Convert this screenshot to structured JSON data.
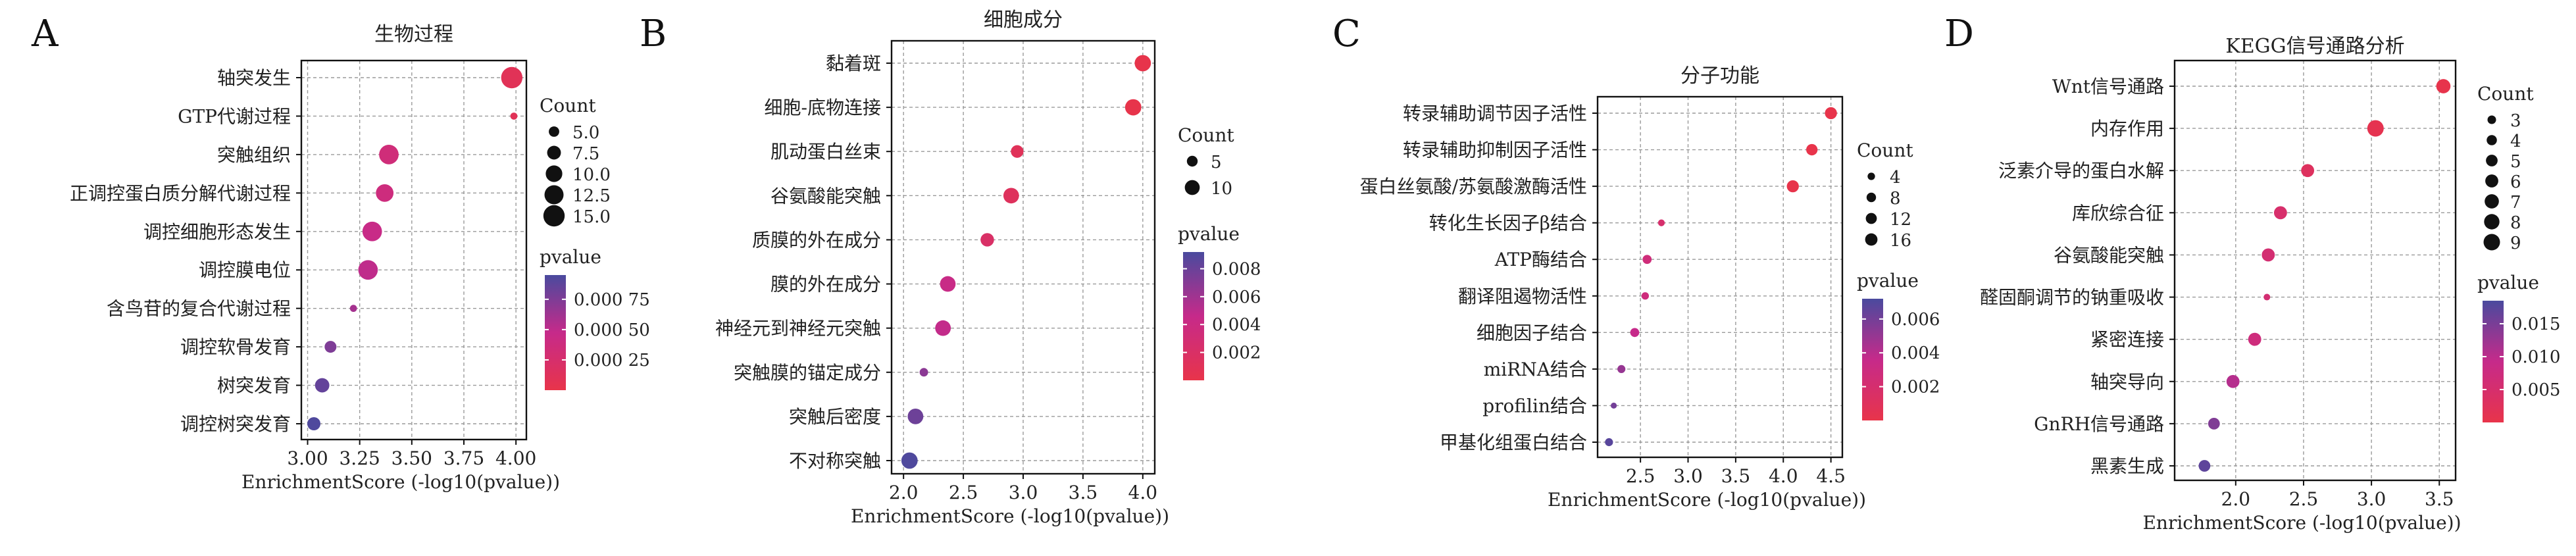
{
  "figure": {
    "panels": [
      {
        "letter": "A",
        "title": "生物过程"
      },
      {
        "letter": "B",
        "title": "细胞成分"
      },
      {
        "letter": "C",
        "title": "分子功能"
      },
      {
        "letter": "D",
        "title": "KEGG信号通路分析"
      }
    ]
  },
  "chart_data": [
    {
      "panel": "A",
      "type": "scatter",
      "title": "生物过程",
      "xlabel": "EnrichmentScore (-log10(pvalue))",
      "ylabel": "",
      "xlim": [
        2.97,
        4.05
      ],
      "xticks": [
        "3.00",
        "3.25",
        "3.50",
        "3.75",
        "4.00"
      ],
      "xtick_values": [
        3.0,
        3.25,
        3.5,
        3.75,
        4.0
      ],
      "grid": true,
      "color_scale": {
        "low": "#e8344a",
        "mid": "#c62a8a",
        "high": "#4a4a9e"
      },
      "size_legend": {
        "title": "Count",
        "labels": [
          "5.0",
          "7.5",
          "10.0",
          "12.5",
          "15.0"
        ],
        "values": [
          5,
          7.5,
          10,
          12.5,
          15
        ]
      },
      "color_legend": {
        "title": "pvalue",
        "labels": [
          "0.000 75",
          "0.000 50",
          "0.000 25"
        ],
        "values": [
          0.00075,
          0.0005,
          0.00025
        ],
        "range": [
          0.0,
          0.00095
        ]
      },
      "categories": [
        "轴突发生",
        "GTP代谢过程",
        "突触组织",
        "正调控蛋白质分解代谢过程",
        "调控细胞形态发生",
        "调控膜电位",
        "含鸟苷的复合代谢过程",
        "调控软骨发育",
        "树突发育",
        "调控树突发育"
      ],
      "x": [
        3.98,
        3.99,
        3.39,
        3.37,
        3.31,
        3.29,
        3.22,
        3.11,
        3.07,
        3.03
      ],
      "count": [
        15,
        3,
        13,
        11,
        13,
        13,
        3,
        6,
        8,
        7
      ],
      "pvalue": [
        0.0001,
        0.0001,
        0.00035,
        0.00038,
        0.00045,
        0.0005,
        0.0006,
        0.00075,
        0.00085,
        0.00093
      ]
    },
    {
      "panel": "B",
      "type": "scatter",
      "title": "细胞成分",
      "xlabel": "EnrichmentScore (-log10(pvalue))",
      "ylabel": "",
      "xlim": [
        1.9,
        4.1
      ],
      "xticks": [
        "2.0",
        "2.5",
        "3.0",
        "3.5",
        "4.0"
      ],
      "xtick_values": [
        2.0,
        2.5,
        3.0,
        3.5,
        4.0
      ],
      "grid": true,
      "color_scale": {
        "low": "#e8344a",
        "mid": "#c62a8a",
        "high": "#4a4a9e"
      },
      "size_legend": {
        "title": "Count",
        "labels": [
          "5",
          "10"
        ],
        "values": [
          5,
          10
        ]
      },
      "color_legend": {
        "title": "pvalue",
        "labels": [
          "0.008",
          "0.006",
          "0.004",
          "0.002"
        ],
        "values": [
          0.008,
          0.006,
          0.004,
          0.002
        ],
        "range": [
          0.0,
          0.0092
        ]
      },
      "categories": [
        "黏着斑",
        "细胞-底物连接",
        "肌动蛋白丝束",
        "谷氨酸能突触",
        "质膜的外在成分",
        "膜的外在成分",
        "神经元到神经元突触",
        "突触膜的锚定成分",
        "突触后密度",
        "不对称突触"
      ],
      "x": [
        4.0,
        3.92,
        2.95,
        2.9,
        2.7,
        2.37,
        2.33,
        2.17,
        2.1,
        2.05
      ],
      "count": [
        12,
        12,
        7,
        11,
        8,
        11,
        11,
        3,
        11,
        12
      ],
      "pvalue": [
        0.0001,
        0.0001,
        0.0011,
        0.0013,
        0.002,
        0.0043,
        0.0047,
        0.0068,
        0.0079,
        0.009
      ]
    },
    {
      "panel": "C",
      "type": "scatter",
      "title": "分子功能",
      "xlabel": "EnrichmentScore (-log10(pvalue))",
      "ylabel": "",
      "xlim": [
        2.05,
        4.62
      ],
      "xticks": [
        "2.5",
        "3.0",
        "3.5",
        "4.0",
        "4.5"
      ],
      "xtick_values": [
        2.5,
        3.0,
        3.5,
        4.0,
        4.5
      ],
      "grid": true,
      "color_scale": {
        "low": "#e8344a",
        "mid": "#c62a8a",
        "high": "#4a4a9e"
      },
      "size_legend": {
        "title": "Count",
        "labels": [
          "4",
          "8",
          "12",
          "16"
        ],
        "values": [
          4,
          8,
          12,
          16
        ]
      },
      "color_legend": {
        "title": "pvalue",
        "labels": [
          "0.006",
          "0.004",
          "0.002"
        ],
        "values": [
          0.006,
          0.004,
          0.002
        ],
        "range": [
          0.0,
          0.0072
        ]
      },
      "categories": [
        "转录辅助调节因子活性",
        "转录辅助抑制因子活性",
        "蛋白丝氨酸/苏氨酸激酶活性",
        "转化生长因子β结合",
        "ATP酶结合",
        "翻译阻遏物活性",
        "细胞因子结合",
        "miRNA结合",
        "profilin结合",
        "甲基化组蛋白结合"
      ],
      "x": [
        4.5,
        4.3,
        4.1,
        2.72,
        2.57,
        2.55,
        2.44,
        2.3,
        2.22,
        2.17
      ],
      "count": [
        15,
        13,
        15,
        3,
        7,
        4,
        7,
        5,
        2,
        5
      ],
      "pvalue": [
        3e-05,
        5e-05,
        8e-05,
        0.0019,
        0.0027,
        0.0028,
        0.0036,
        0.005,
        0.006,
        0.0068
      ]
    },
    {
      "panel": "D",
      "type": "scatter",
      "title": "KEGG信号通路分析",
      "xlabel": "EnrichmentScore (-log10(pvalue))",
      "ylabel": "",
      "xlim": [
        1.55,
        3.62
      ],
      "xticks": [
        "2.0",
        "2.5",
        "3.0",
        "3.5"
      ],
      "xtick_values": [
        2.0,
        2.5,
        3.0,
        3.5
      ],
      "grid": true,
      "color_scale": {
        "low": "#e8344a",
        "mid": "#c62a8a",
        "high": "#4a4a9e"
      },
      "size_legend": {
        "title": "Count",
        "labels": [
          "3",
          "4",
          "5",
          "6",
          "7",
          "8",
          "9"
        ],
        "values": [
          3,
          4,
          5,
          6,
          7,
          8,
          9
        ]
      },
      "color_legend": {
        "title": "pvalue",
        "labels": [
          "0.015",
          "0.010",
          "0.005"
        ],
        "values": [
          0.015,
          0.01,
          0.005
        ],
        "range": [
          0.0,
          0.0185
        ]
      },
      "categories": [
        "Wnt信号通路",
        "内存作用",
        "泛素介导的蛋白水解",
        "库欣综合征",
        "谷氨酸能突触",
        "醛固酮调节的钠重吸收",
        "紧密连接",
        "轴突导向",
        "GnRH信号通路",
        "黑素生成"
      ],
      "x": [
        3.53,
        3.03,
        2.53,
        2.33,
        2.24,
        2.23,
        2.14,
        1.98,
        1.84,
        1.77
      ],
      "count": [
        7,
        9,
        6,
        6,
        6,
        2,
        6,
        6,
        5,
        5
      ],
      "pvalue": [
        0.0003,
        0.0009,
        0.0029,
        0.0047,
        0.0057,
        0.0058,
        0.0072,
        0.0105,
        0.0145,
        0.017
      ]
    }
  ]
}
